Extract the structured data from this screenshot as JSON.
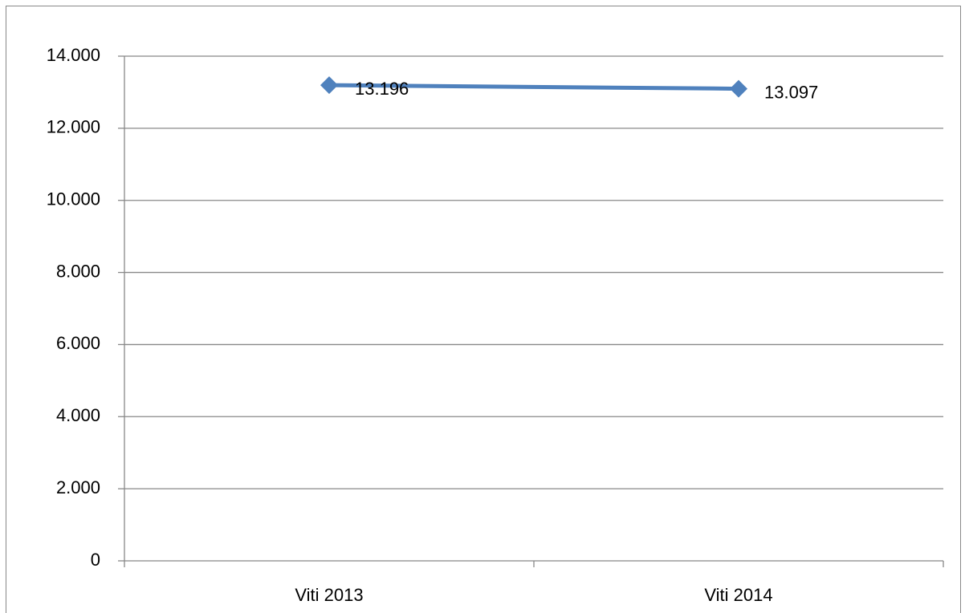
{
  "chart_data": {
    "type": "line",
    "categories": [
      "Viti 2013",
      "Viti 2014"
    ],
    "series": [
      {
        "color": "#4f81bd",
        "values": [
          13196,
          13097
        ],
        "value_labels": [
          "13.196",
          "13.097"
        ]
      }
    ],
    "ylim": [
      0,
      14000
    ],
    "yticks": [
      0,
      {
        "value": 2000,
        "label": "2.000"
      },
      {
        "value": 4000,
        "label": "4.000"
      },
      {
        "value": 6000,
        "label": "6.000"
      },
      {
        "value": 8000,
        "label": "8.000"
      },
      {
        "value": 10000,
        "label": "10.000"
      },
      {
        "value": 12000,
        "label": "12.000"
      },
      {
        "value": 14000,
        "label": "14.000"
      }
    ],
    "grid": true
  }
}
